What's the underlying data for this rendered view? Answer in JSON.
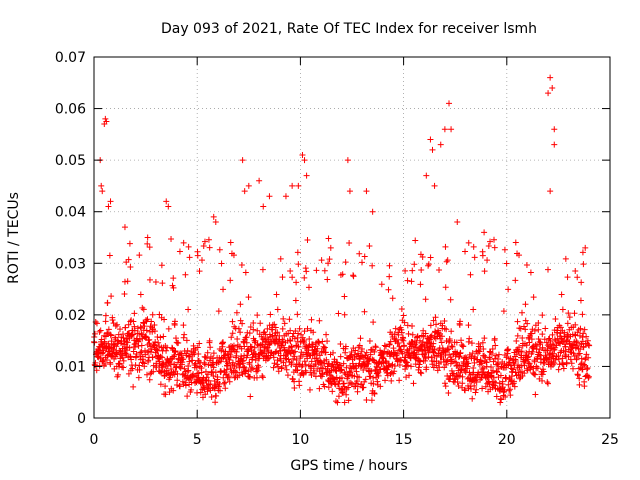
{
  "chart_data": {
    "type": "scatter",
    "title": "Day 093 of 2021, Rate Of TEC Index for receiver lsmh",
    "xlabel": "GPS time / hours",
    "ylabel": "ROTI / TECUs",
    "xlim": [
      0,
      25
    ],
    "ylim": [
      0,
      0.07
    ],
    "xticks": [
      0,
      5,
      10,
      15,
      20,
      25
    ],
    "xtick_labels": [
      "0",
      "5",
      "10",
      "15",
      "20",
      "25"
    ],
    "yticks": [
      0,
      0.01,
      0.02,
      0.03,
      0.04,
      0.05,
      0.06,
      0.07
    ],
    "ytick_labels": [
      "0",
      "0.01",
      "0.02",
      "0.03",
      "0.04",
      "0.05",
      "0.06",
      "0.07"
    ],
    "grid": true,
    "marker": "+",
    "series": [
      {
        "name": "ROTI",
        "color": "#ff0000",
        "points": [
          [
            0.3,
            0.05
          ],
          [
            0.35,
            0.045
          ],
          [
            0.4,
            0.044
          ],
          [
            0.5,
            0.057
          ],
          [
            0.55,
            0.058
          ],
          [
            0.6,
            0.0575
          ],
          [
            0.7,
            0.041
          ],
          [
            0.8,
            0.042
          ],
          [
            1.5,
            0.037
          ],
          [
            2.6,
            0.035
          ],
          [
            3.5,
            0.042
          ],
          [
            3.6,
            0.041
          ],
          [
            5.8,
            0.039
          ],
          [
            5.9,
            0.038
          ],
          [
            7.2,
            0.05
          ],
          [
            7.3,
            0.044
          ],
          [
            7.5,
            0.045
          ],
          [
            8.0,
            0.046
          ],
          [
            8.2,
            0.041
          ],
          [
            8.5,
            0.043
          ],
          [
            9.3,
            0.043
          ],
          [
            9.6,
            0.045
          ],
          [
            9.9,
            0.045
          ],
          [
            10.1,
            0.051
          ],
          [
            10.2,
            0.05
          ],
          [
            10.3,
            0.047
          ],
          [
            12.3,
            0.05
          ],
          [
            12.4,
            0.044
          ],
          [
            13.2,
            0.044
          ],
          [
            13.5,
            0.04
          ],
          [
            16.1,
            0.047
          ],
          [
            16.3,
            0.054
          ],
          [
            16.4,
            0.052
          ],
          [
            16.5,
            0.045
          ],
          [
            16.8,
            0.053
          ],
          [
            17.0,
            0.056
          ],
          [
            17.2,
            0.061
          ],
          [
            17.3,
            0.056
          ],
          [
            17.6,
            0.038
          ],
          [
            18.9,
            0.036
          ],
          [
            22.0,
            0.063
          ],
          [
            22.1,
            0.066
          ],
          [
            22.2,
            0.064
          ],
          [
            22.3,
            0.056
          ],
          [
            22.3,
            0.053
          ],
          [
            22.1,
            0.044
          ],
          [
            23.8,
            0.033
          ]
        ]
      }
    ]
  }
}
